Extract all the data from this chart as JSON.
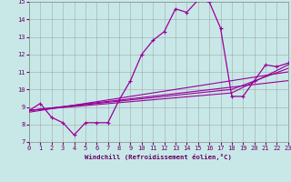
{
  "xlabel": "Windchill (Refroidissement éolien,°C)",
  "xlim": [
    0,
    23
  ],
  "ylim": [
    7,
    15
  ],
  "yticks": [
    7,
    8,
    9,
    10,
    11,
    12,
    13,
    14,
    15
  ],
  "xticks": [
    0,
    1,
    2,
    3,
    4,
    5,
    6,
    7,
    8,
    9,
    10,
    11,
    12,
    13,
    14,
    15,
    16,
    17,
    18,
    19,
    20,
    21,
    22,
    23
  ],
  "background_color": "#c8e8e8",
  "grid_color": "#999999",
  "line_color": "#990099",
  "main_line": {
    "x": [
      0,
      1,
      2,
      3,
      4,
      5,
      6,
      7,
      8,
      9,
      10,
      11,
      12,
      13,
      14,
      15,
      16,
      17,
      18,
      19,
      20,
      21,
      22,
      23
    ],
    "y": [
      8.8,
      9.2,
      8.4,
      8.1,
      7.4,
      8.1,
      8.1,
      8.1,
      9.4,
      10.5,
      12.0,
      12.8,
      13.3,
      14.6,
      14.4,
      15.1,
      15.0,
      13.5,
      9.6,
      9.6,
      10.5,
      11.4,
      11.3,
      11.5
    ]
  },
  "trend_lines": [
    {
      "x": [
        0,
        23
      ],
      "y": [
        8.8,
        10.5
      ]
    },
    {
      "x": [
        0,
        23
      ],
      "y": [
        8.7,
        11.0
      ]
    },
    {
      "x": [
        0,
        18,
        23
      ],
      "y": [
        8.8,
        10.0,
        11.2
      ]
    },
    {
      "x": [
        0,
        18,
        23
      ],
      "y": [
        8.8,
        9.8,
        11.4
      ]
    }
  ]
}
